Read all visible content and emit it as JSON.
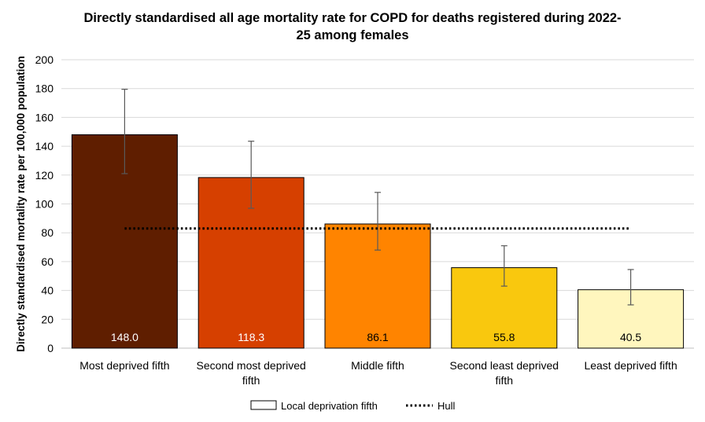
{
  "chart_data": {
    "type": "bar",
    "title_lines": [
      "Directly standardised all age mortality rate for COPD for deaths registered during 2022-",
      "25 among females"
    ],
    "ylabel": "Directly standardised mortality rate per 100,000 population",
    "ylim": [
      0,
      200
    ],
    "ytick_step": 20,
    "grid": true,
    "categories": [
      [
        "Most deprived fifth"
      ],
      [
        "Second most deprived",
        "fifth"
      ],
      [
        "Middle fifth"
      ],
      [
        "Second least deprived",
        "fifth"
      ],
      [
        "Least deprived fifth"
      ]
    ],
    "series": [
      {
        "name": "Local deprivation fifth",
        "values": [
          148.0,
          118.3,
          86.1,
          55.8,
          40.5
        ],
        "labels": [
          "148.0",
          "118.3",
          "86.1",
          "55.8",
          "40.5"
        ],
        "error_low": [
          121,
          97,
          68,
          43,
          30
        ],
        "error_high": [
          179.5,
          143.5,
          108,
          71,
          54.5
        ],
        "colors": [
          "#5f1e00",
          "#d64000",
          "#ff8400",
          "#f9c80e",
          "#fff6be"
        ],
        "label_colors": [
          "#ffffff",
          "#ffffff",
          "#000000",
          "#000000",
          "#000000"
        ]
      }
    ],
    "reference_line": {
      "name": "Hull",
      "value": 83,
      "style": "dotted"
    },
    "legend": {
      "position": "bottom",
      "entries": [
        "Local deprivation fifth",
        "Hull"
      ]
    }
  }
}
